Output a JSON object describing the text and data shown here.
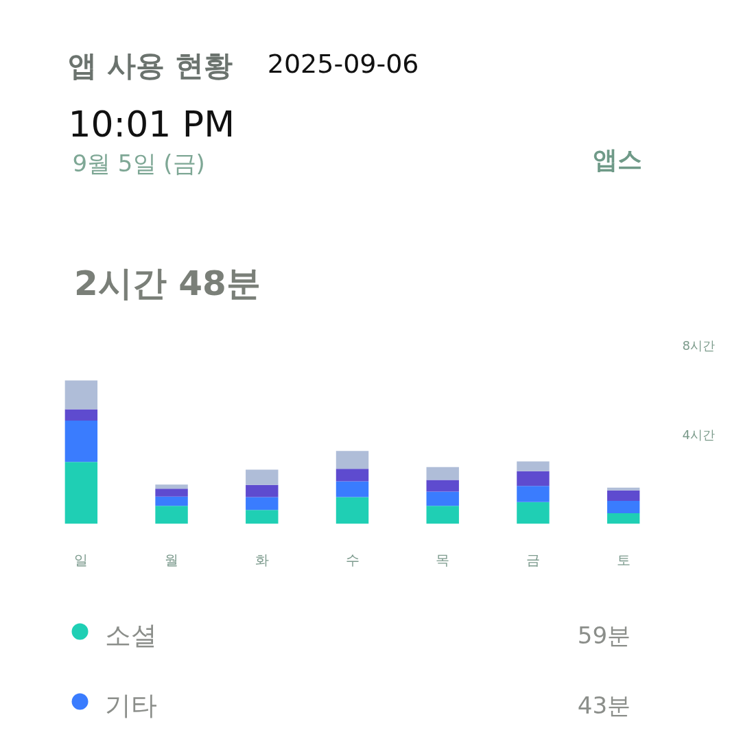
{
  "chart_data": {
    "type": "bar",
    "stacked": true,
    "title": "앱 사용 현황",
    "subtitle": "9월 5일 (금)",
    "annotations": [
      "2025-09-06",
      "10:01 PM",
      "앱스",
      "2시간 48분",
      "59분",
      "43분"
    ],
    "categories": [
      "일",
      "월",
      "화",
      "수",
      "목",
      "금",
      "토"
    ],
    "series": [
      {
        "name": "소셜",
        "color": "#1fcfb4",
        "values": [
          2.78,
          0.81,
          0.62,
          1.2,
          0.81,
          0.98,
          0.48
        ]
      },
      {
        "name": "기타",
        "color": "#3a7cfe",
        "values": [
          1.85,
          0.41,
          0.58,
          0.71,
          0.64,
          0.72,
          0.55
        ]
      },
      {
        "color": "#5e4bcf",
        "values": [
          0.51,
          0.36,
          0.55,
          0.56,
          0.52,
          0.66,
          0.47
        ]
      },
      {
        "color": "#afbdd8",
        "values": [
          1.29,
          0.18,
          0.68,
          0.8,
          0.58,
          0.44,
          0.12
        ]
      }
    ],
    "ylim": [
      0,
      8
    ],
    "yticks": [
      {
        "value": 4,
        "label": "4시간"
      },
      {
        "value": 8,
        "label": "8시간"
      }
    ],
    "grid": false,
    "legend": "bottom"
  }
}
